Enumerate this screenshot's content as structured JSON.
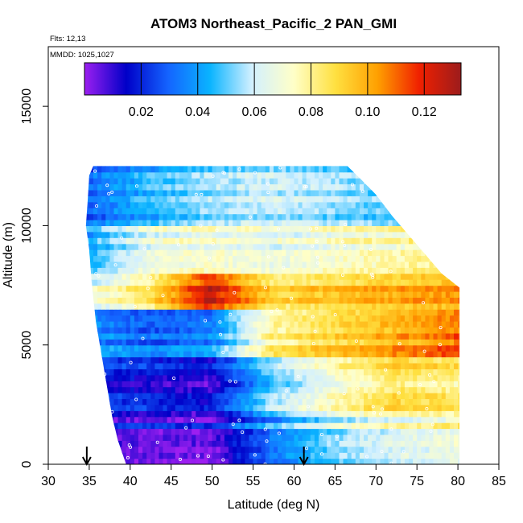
{
  "chart_data": {
    "type": "heatmap",
    "title": "ATOM3 Northeast_Pacific_2 PAN_GMI",
    "subtitle_flights": "Flts: 12,13",
    "subtitle_dates": "MMDD: 1025,1027",
    "xlabel": "Latitude (deg N)",
    "ylabel": "Altitude (m)",
    "xlim": [
      30,
      85
    ],
    "ylim": [
      0,
      17500
    ],
    "x_ticks": [
      "30",
      "35",
      "40",
      "45",
      "50",
      "55",
      "60",
      "65",
      "70",
      "75",
      "80",
      "85"
    ],
    "y_ticks": [
      "0",
      "5000",
      "10000",
      "15000"
    ],
    "colorbar": {
      "range": [
        0,
        0.133
      ],
      "ticks": [
        "0.02",
        "0.04",
        "0.06",
        "0.08",
        "0.10",
        "0.12"
      ],
      "tick_values": [
        0.02,
        0.04,
        0.06,
        0.08,
        0.1,
        0.12
      ],
      "colors": [
        "#9c1ff0",
        "#0000c8",
        "#1464ff",
        "#0ab4ff",
        "#d2f0ff",
        "#ffffc8",
        "#ffe040",
        "#ffa000",
        "#f02000",
        "#9c1c1c"
      ]
    },
    "arrows_latitude": [
      34.7,
      61.2
    ],
    "domain": {
      "lat_range": [
        34.5,
        80.2
      ],
      "alt_range": [
        0,
        12500
      ],
      "top_boundary": [
        [
          35.5,
          12500
        ],
        [
          66.5,
          12500
        ],
        [
          68,
          12000
        ],
        [
          70,
          11300
        ],
        [
          72,
          10400
        ],
        [
          74,
          9600
        ],
        [
          76,
          8800
        ],
        [
          78,
          8000
        ],
        [
          80.2,
          7400
        ]
      ],
      "bottom_boundary": [
        [
          35.5,
          12500
        ],
        [
          35,
          12100
        ],
        [
          34.8,
          11000
        ],
        [
          34.6,
          10000
        ],
        [
          35,
          9000
        ],
        [
          35.3,
          7600
        ],
        [
          35.8,
          6000
        ],
        [
          36.3,
          5000
        ],
        [
          36.8,
          4000
        ],
        [
          37.3,
          3000
        ],
        [
          37.8,
          2000
        ],
        [
          38.5,
          1000
        ],
        [
          39.5,
          0
        ],
        [
          79.5,
          0
        ]
      ]
    },
    "field_values_by_band": [
      {
        "alt": [
          10000,
          12500
        ],
        "values_west_to_east": [
          0.03,
          0.045,
          0.055,
          0.06,
          0.055,
          0.05,
          0.045
        ]
      },
      {
        "alt": [
          8000,
          10000
        ],
        "values_west_to_east": [
          0.04,
          0.065,
          0.07,
          0.065,
          0.07,
          0.075,
          0.08
        ]
      },
      {
        "alt": [
          6500,
          8000
        ],
        "values_west_to_east": [
          0.06,
          0.08,
          0.12,
          0.085,
          0.09,
          0.095,
          0.1
        ]
      },
      {
        "alt": [
          4500,
          6500
        ],
        "values_west_to_east": [
          0.04,
          0.03,
          0.035,
          0.08,
          0.09,
          0.1,
          0.11
        ]
      },
      {
        "alt": [
          2000,
          4500
        ],
        "values_west_to_east": [
          0.02,
          0.015,
          0.01,
          0.05,
          0.07,
          0.085,
          0.08
        ]
      },
      {
        "alt": [
          0,
          2000
        ],
        "values_west_to_east": [
          0.015,
          0.012,
          0.01,
          0.04,
          0.06,
          0.07,
          0.075
        ]
      }
    ]
  }
}
